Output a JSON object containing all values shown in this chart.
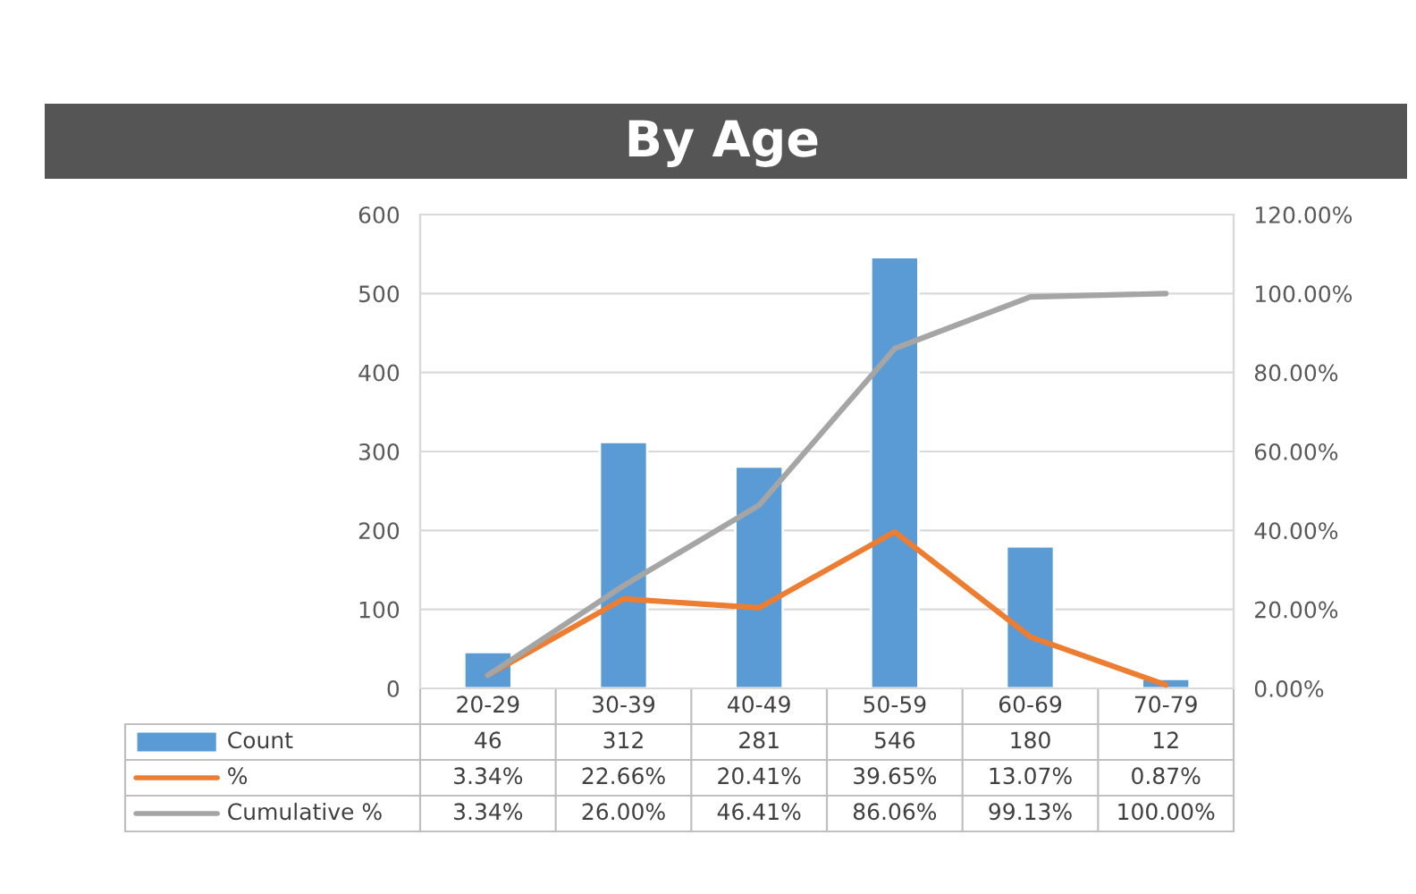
{
  "chart_data": {
    "type": "bar",
    "title": "By Age",
    "categories": [
      "20-29",
      "30-39",
      "40-49",
      "50-59",
      "60-69",
      "70-79"
    ],
    "series": [
      {
        "name": "Count",
        "color": "#5b9bd5",
        "values": [
          46,
          312,
          281,
          546,
          180,
          12
        ],
        "value_labels": [
          "46",
          "312",
          "281",
          "546",
          "180",
          "12"
        ]
      },
      {
        "name": "%",
        "type": "line",
        "axis": "y2",
        "color": "#ed7d31",
        "values": [
          3.34,
          22.66,
          20.41,
          39.65,
          13.07,
          0.87
        ],
        "value_labels": [
          "3.34%",
          "22.66%",
          "20.41%",
          "39.65%",
          "13.07%",
          "0.87%"
        ]
      },
      {
        "name": "Cumulative %",
        "type": "line",
        "axis": "y2",
        "color": "#a5a5a5",
        "values": [
          3.34,
          26.0,
          46.41,
          86.06,
          99.13,
          100.0
        ],
        "value_labels": [
          "3.34%",
          "26.00%",
          "46.41%",
          "86.06%",
          "99.13%",
          "100.00%"
        ]
      }
    ],
    "ylim": [
      0,
      600
    ],
    "yticks": [
      0,
      100,
      200,
      300,
      400,
      500,
      600
    ],
    "y2lim": [
      0,
      120
    ],
    "y2ticks": [
      {
        "value": 0,
        "label": "0.00%"
      },
      {
        "value": 20,
        "label": "20.00%"
      },
      {
        "value": 40,
        "label": "40.00%"
      },
      {
        "value": 60,
        "label": "60.00%"
      },
      {
        "value": 80,
        "label": "80.00%"
      },
      {
        "value": 100,
        "label": "100.00%"
      },
      {
        "value": 120,
        "label": "120.00%"
      }
    ],
    "grid": "y",
    "legend": "bottom left",
    "marker": "none",
    "line_style": "solid"
  }
}
